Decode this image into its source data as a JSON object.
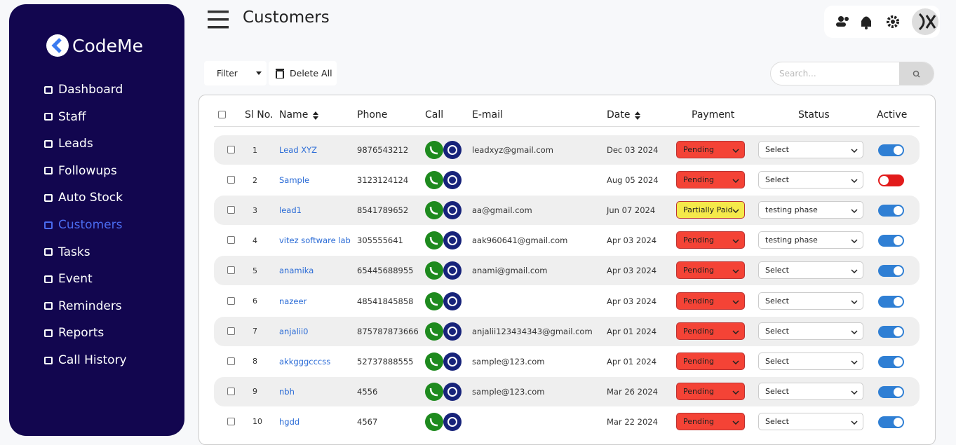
{
  "sidebar": {
    "brand": "CodeMe",
    "menu": [
      "Dashboard",
      "Staff",
      "Leads",
      "Followups",
      "Auto Stock",
      "Customers",
      "Tasks",
      "Event",
      "Reminders",
      "Reports",
      "Call History"
    ],
    "active_index": 5
  },
  "header": {
    "title": "Customers"
  },
  "toolbar": {
    "filter": "Filter",
    "delete_all": "Delete All",
    "search_placeholder": "Search..."
  },
  "table": {
    "columns": [
      "Sl No.",
      "Name",
      "Phone",
      "Call",
      "E-mail",
      "Date",
      "Payment",
      "Status",
      "Active"
    ],
    "rows": [
      {
        "sl": 1,
        "name": "Lead XYZ",
        "phone": "9876543212",
        "email": "leadxyz@gmail.com",
        "date": "Dec 03 2024",
        "payment": "Pending",
        "status": "Select",
        "active": true
      },
      {
        "sl": 2,
        "name": "Sample",
        "phone": "3123124124",
        "date": "Aug 05 2024",
        "payment": "Pending",
        "status": "Select",
        "active": false
      },
      {
        "sl": 3,
        "name": "lead1",
        "phone": "8541789652",
        "email": "aa@gmail.com",
        "date": "Jun 07 2024",
        "payment": "Partially Paid",
        "status": "testing phase",
        "active": true
      },
      {
        "sl": 4,
        "name": "vitez software lab",
        "phone": "305555641",
        "email": "aak960641@gmail.com",
        "date": "Apr 03 2024",
        "payment": "Pending",
        "status": "testing phase",
        "active": true
      },
      {
        "sl": 5,
        "name": "anamika",
        "phone": "65445688955",
        "email": "anami@gmail.com",
        "date": "Apr 03 2024",
        "payment": "Pending",
        "status": "Select",
        "active": true
      },
      {
        "sl": 6,
        "name": "nazeer",
        "phone": "48541845858",
        "date": "Apr 03 2024",
        "payment": "Pending",
        "status": "Select",
        "active": true
      },
      {
        "sl": 7,
        "name": "anjalii0",
        "phone": "875787873666",
        "email": "anjalii123434343@gmail.com",
        "date": "Apr 01 2024",
        "payment": "Pending",
        "status": "Select",
        "active": true
      },
      {
        "sl": 8,
        "name": "akkgggcccss",
        "phone": "52737888555",
        "email": "sample@123.com",
        "date": "Apr 01 2024",
        "payment": "Pending",
        "status": "Select",
        "active": true
      },
      {
        "sl": 9,
        "name": "nbh",
        "phone": "4556",
        "email": "sample@123.com",
        "date": "Mar 26 2024",
        "payment": "Pending",
        "status": "Select",
        "active": true
      },
      {
        "sl": 10,
        "name": "hgdd",
        "phone": "4567",
        "date": "Mar 22 2024",
        "payment": "Pending",
        "status": "Select",
        "active": true
      }
    ]
  }
}
